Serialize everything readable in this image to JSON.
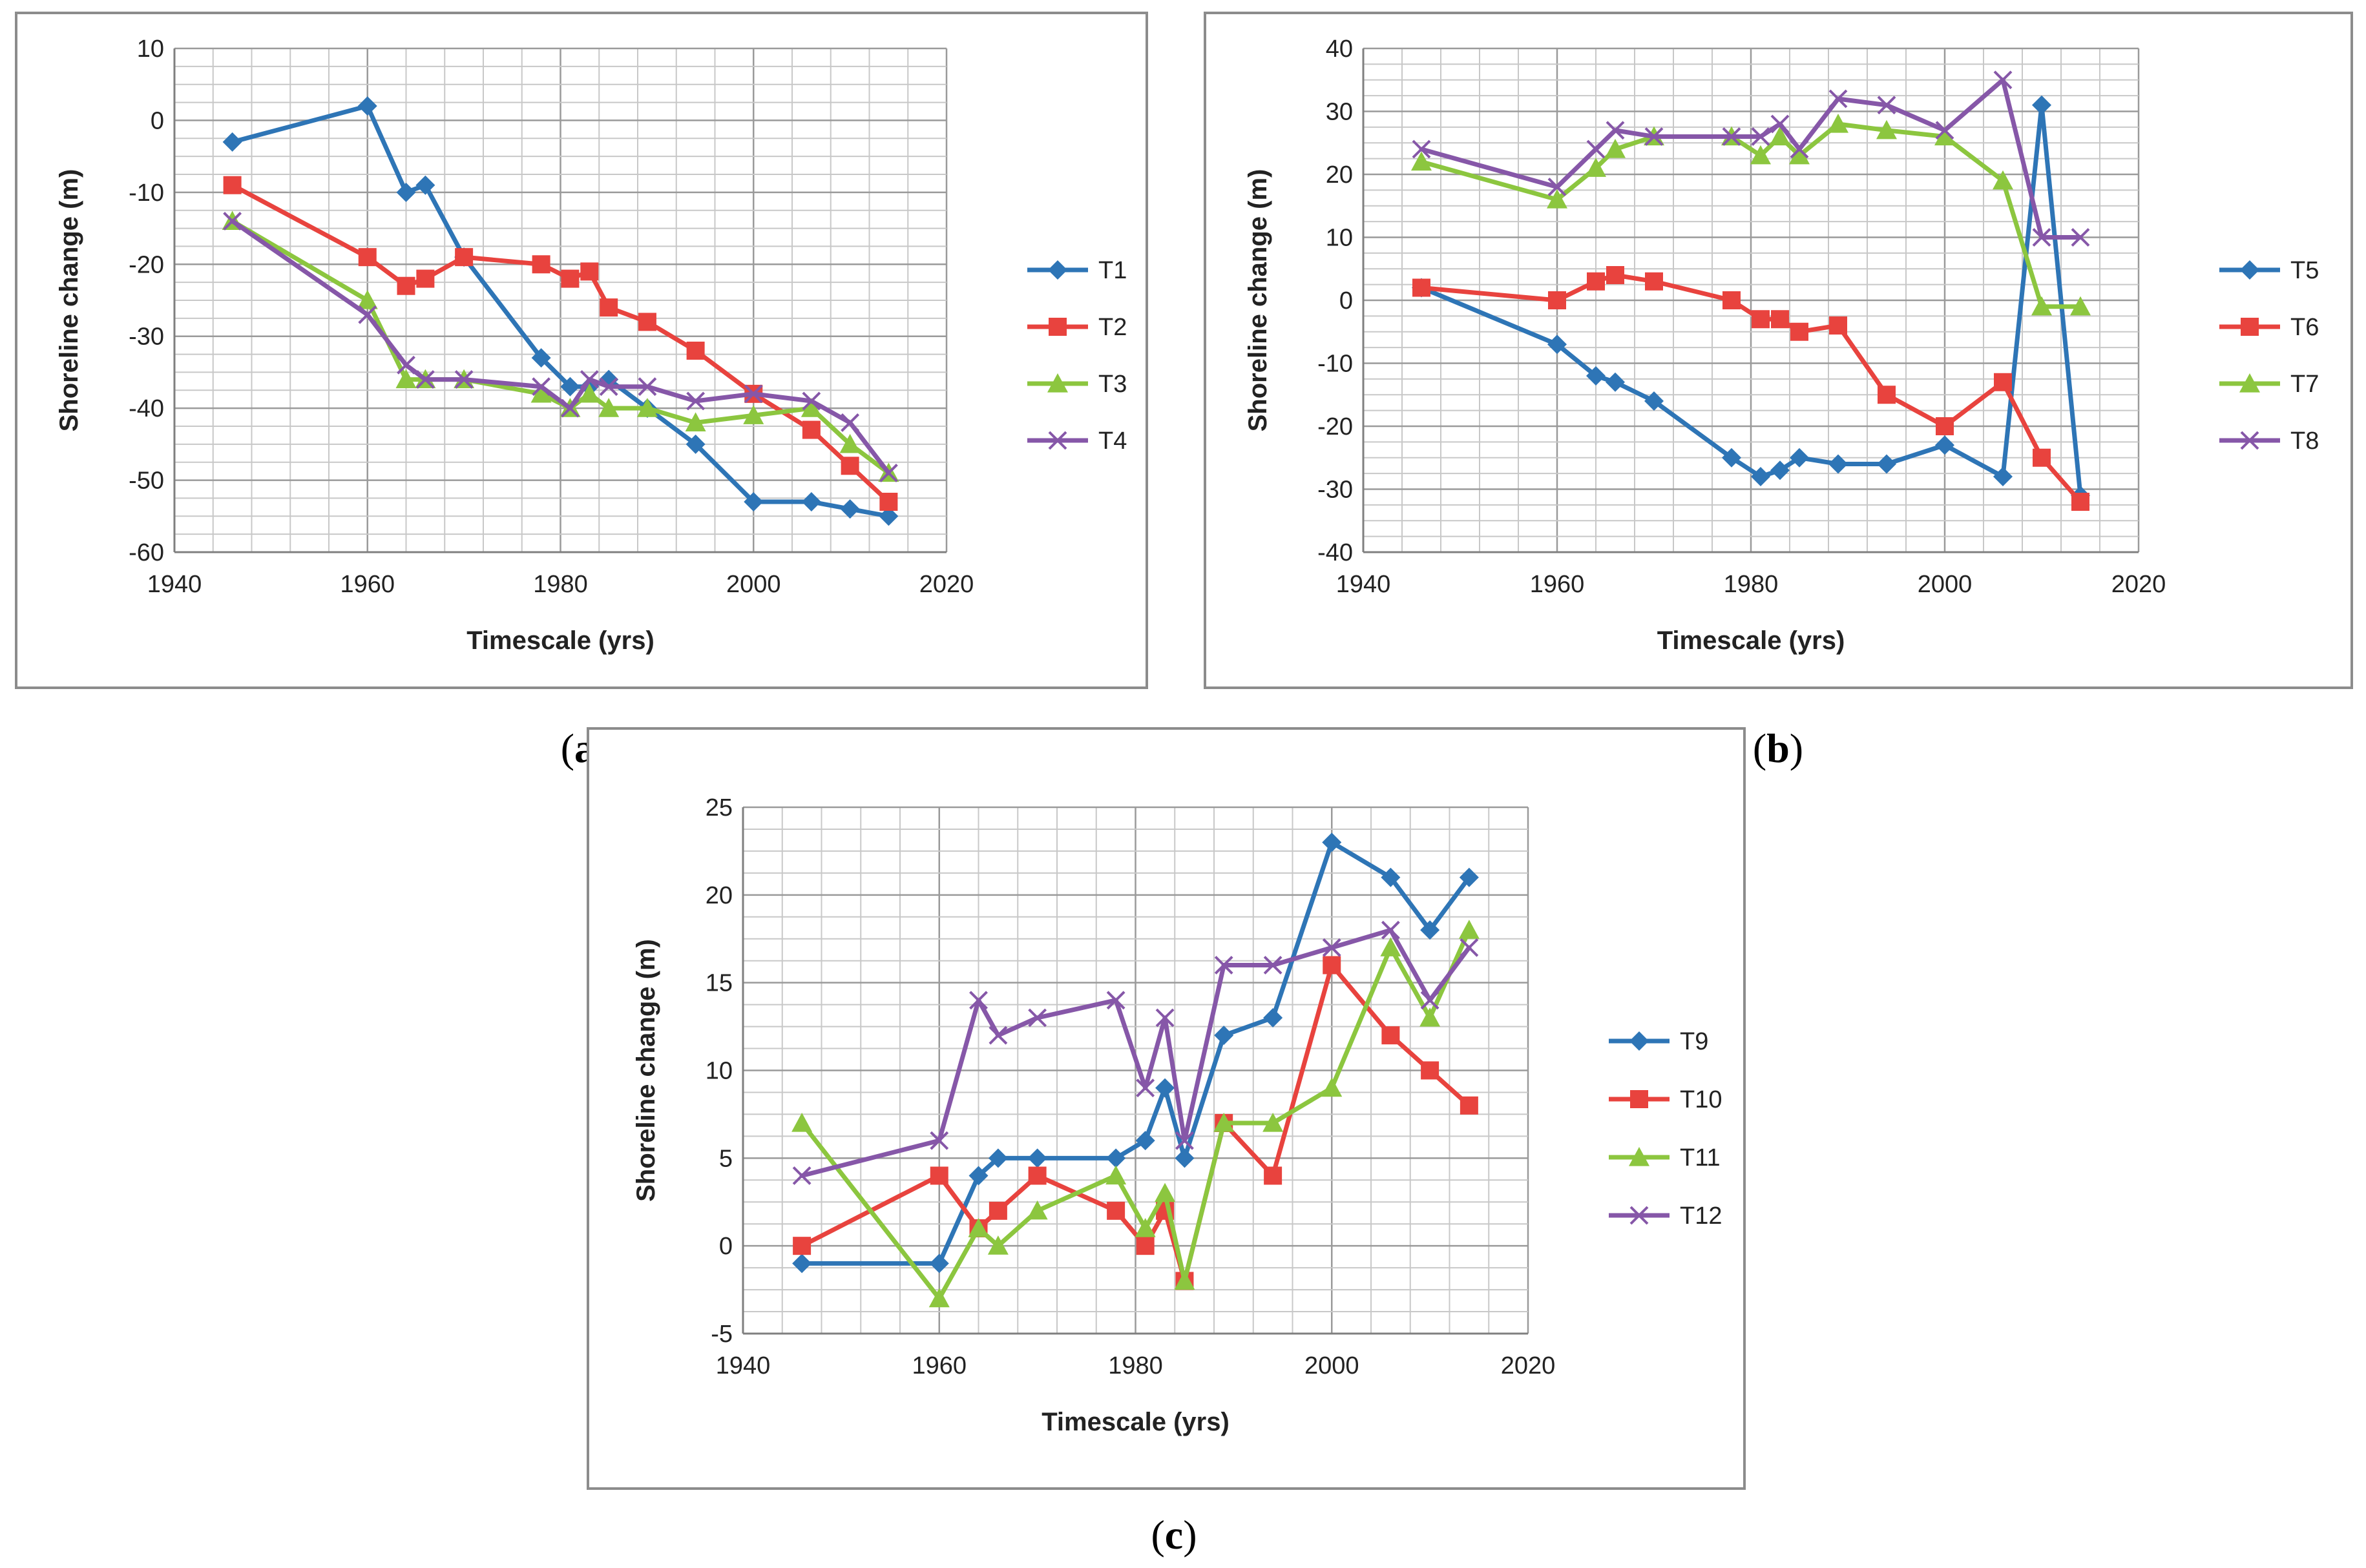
{
  "chart_data": [
    {
      "type": "line",
      "panel": "a",
      "caption": "(a)",
      "caption_letter": "a",
      "title": "",
      "xlabel": "Timescale (yrs)",
      "ylabel": "Shoreline change (m)",
      "xlim": [
        1940,
        2020
      ],
      "ylim": [
        -60,
        10
      ],
      "x_major": 20,
      "x_minor": 4,
      "y_major": 10,
      "y_minor": 2.5,
      "legend_position": "right",
      "x": [
        1946,
        1960,
        1964,
        1966,
        1970,
        1978,
        1981,
        1983,
        1985,
        1989,
        1994,
        2000,
        2006,
        2010,
        2014
      ],
      "series": [
        {
          "name": "T1",
          "color": "#2e75b6",
          "marker": "diamond",
          "values": [
            -3,
            2,
            -10,
            -9,
            -19,
            -33,
            -37,
            -37,
            -36,
            -40,
            -45,
            -53,
            -53,
            -54,
            -55
          ]
        },
        {
          "name": "T2",
          "color": "#e8433e",
          "marker": "square",
          "values": [
            -9,
            -19,
            -23,
            -22,
            -19,
            -20,
            -22,
            -21,
            -26,
            -28,
            -32,
            -38,
            -43,
            -48,
            -53
          ]
        },
        {
          "name": "T3",
          "color": "#8cc63f",
          "marker": "triangle",
          "values": [
            -14,
            -25,
            -36,
            -36,
            -36,
            -38,
            -40,
            -38,
            -40,
            -40,
            -42,
            -41,
            -40,
            -45,
            -49
          ]
        },
        {
          "name": "T4",
          "color": "#8657a8",
          "marker": "x",
          "values": [
            -14,
            -27,
            -34,
            -36,
            -36,
            -37,
            -40,
            -36,
            -37,
            -37,
            -39,
            -38,
            -39,
            -42,
            -49
          ]
        }
      ]
    },
    {
      "type": "line",
      "panel": "b",
      "caption": "(b)",
      "caption_letter": "b",
      "title": "",
      "xlabel": "Timescale (yrs)",
      "ylabel": "Shoreline change (m)",
      "xlim": [
        1940,
        2020
      ],
      "ylim": [
        -40,
        40
      ],
      "x_major": 20,
      "x_minor": 4,
      "y_major": 10,
      "y_minor": 2.5,
      "legend_position": "right",
      "x": [
        1946,
        1960,
        1964,
        1966,
        1970,
        1978,
        1981,
        1983,
        1985,
        1989,
        1994,
        2000,
        2006,
        2010,
        2014
      ],
      "series": [
        {
          "name": "T5",
          "color": "#2e75b6",
          "marker": "diamond",
          "values": [
            2,
            -7,
            -12,
            -13,
            -16,
            -25,
            -28,
            -27,
            -25,
            -26,
            -26,
            -23,
            -28,
            31,
            -31
          ]
        },
        {
          "name": "T6",
          "color": "#e8433e",
          "marker": "square",
          "values": [
            2,
            0,
            3,
            4,
            3,
            0,
            -3,
            -3,
            -5,
            -4,
            -15,
            -20,
            -13,
            -25,
            -32
          ]
        },
        {
          "name": "T7",
          "color": "#8cc63f",
          "marker": "triangle",
          "values": [
            22,
            16,
            21,
            24,
            26,
            26,
            23,
            26,
            23,
            28,
            27,
            26,
            19,
            -1,
            -1
          ]
        },
        {
          "name": "T8",
          "color": "#8657a8",
          "marker": "x",
          "values": [
            24,
            18,
            24,
            27,
            26,
            26,
            26,
            28,
            24,
            32,
            31,
            27,
            35,
            10,
            10
          ]
        }
      ]
    },
    {
      "type": "line",
      "panel": "c",
      "caption": "(c)",
      "caption_letter": "c",
      "title": "",
      "xlabel": "Timescale (yrs)",
      "ylabel": "Shoreline change (m)",
      "xlim": [
        1940,
        2020
      ],
      "ylim": [
        -5,
        25
      ],
      "x_major": 20,
      "x_minor": 4,
      "y_major": 5,
      "y_minor": 1.25,
      "legend_position": "right",
      "x": [
        1946,
        1960,
        1964,
        1966,
        1970,
        1978,
        1981,
        1983,
        1985,
        1989,
        1994,
        2000,
        2006,
        2010,
        2014
      ],
      "series": [
        {
          "name": "T9",
          "color": "#2e75b6",
          "marker": "diamond",
          "values": [
            -1,
            -1,
            4,
            5,
            5,
            5,
            6,
            9,
            5,
            12,
            13,
            23,
            21,
            18,
            21
          ]
        },
        {
          "name": "T10",
          "color": "#e8433e",
          "marker": "square",
          "values": [
            0,
            4,
            1,
            2,
            4,
            2,
            0,
            2,
            -2,
            7,
            4,
            16,
            12,
            10,
            8
          ]
        },
        {
          "name": "T11",
          "color": "#8cc63f",
          "marker": "triangle",
          "values": [
            7,
            -3,
            1,
            0,
            2,
            4,
            1,
            3,
            -2,
            7,
            7,
            9,
            17,
            13,
            18
          ]
        },
        {
          "name": "T12",
          "color": "#8657a8",
          "marker": "x",
          "values": [
            4,
            6,
            14,
            12,
            13,
            14,
            9,
            13,
            6,
            16,
            16,
            17,
            18,
            14,
            17
          ]
        }
      ]
    }
  ]
}
